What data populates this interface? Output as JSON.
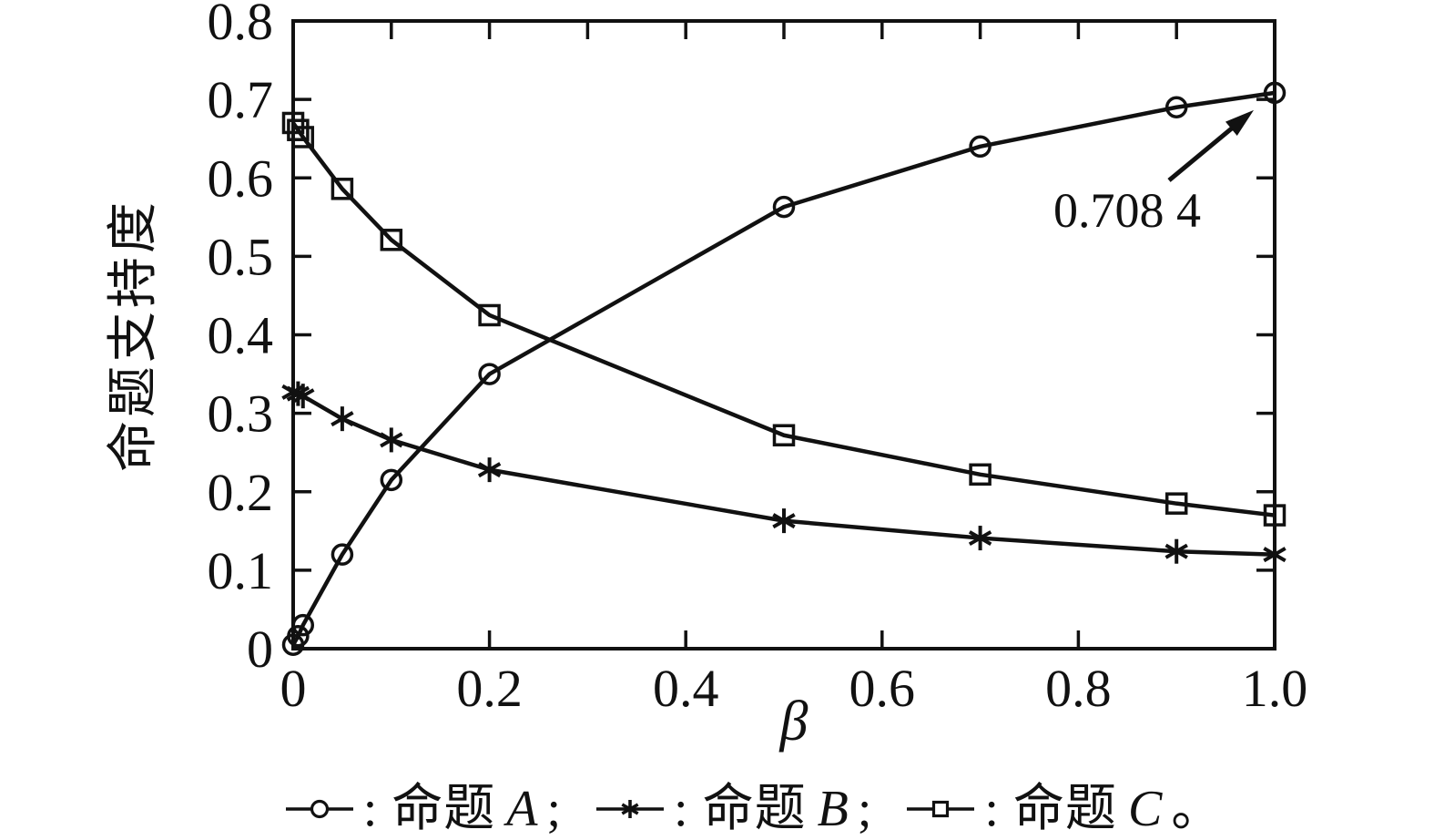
{
  "figure": {
    "background": "#ffffff",
    "ink_color": "#111111"
  },
  "chart_data": {
    "type": "line",
    "title": "",
    "xlabel": "β",
    "ylabel": "命题支持度",
    "xlim": [
      0,
      1.0
    ],
    "ylim": [
      0,
      0.8
    ],
    "grid": false,
    "x_tick_values": [
      0,
      0.2,
      0.4,
      0.6,
      0.8,
      1.0
    ],
    "x_tick_labels": [
      "0",
      "0.2",
      "0.4",
      "0.6",
      "0.8",
      "1.0"
    ],
    "y_tick_values": [
      0,
      0.1,
      0.2,
      0.3,
      0.4,
      0.5,
      0.6,
      0.7,
      0.8
    ],
    "y_tick_labels": [
      "0",
      "0.1",
      "0.2",
      "0.3",
      "0.4",
      "0.5",
      "0.6",
      "0.7",
      "0.8"
    ],
    "minor_tick_interval": 0.1,
    "x": [
      0,
      0.005,
      0.01,
      0.05,
      0.1,
      0.2,
      0.5,
      0.7,
      0.9,
      1.0
    ],
    "series": [
      {
        "name": "命题A",
        "marker": "circle",
        "values": [
          0.005,
          0.016,
          0.03,
          0.12,
          0.215,
          0.35,
          0.563,
          0.64,
          0.69,
          0.7084
        ]
      },
      {
        "name": "命题B",
        "marker": "asterisk",
        "values": [
          0.327,
          0.325,
          0.322,
          0.293,
          0.266,
          0.228,
          0.163,
          0.141,
          0.124,
          0.12
        ]
      },
      {
        "name": "命题C",
        "marker": "square",
        "values": [
          0.67,
          0.661,
          0.652,
          0.586,
          0.521,
          0.425,
          0.272,
          0.222,
          0.185,
          0.17
        ]
      }
    ],
    "annotation": {
      "text": "0.708 4",
      "points_to_series": "命题A",
      "x": 1.0,
      "y": 0.7084
    },
    "legend": {
      "position": "below-chart",
      "items": [
        {
          "marker": "circle",
          "colon": ":",
          "name_cn": "命题",
          "letter": "A",
          "suffix": ";"
        },
        {
          "marker": "asterisk",
          "colon": ":",
          "name_cn": "命题",
          "letter": "B",
          "suffix": ";"
        },
        {
          "marker": "square",
          "colon": ":",
          "name_cn": "命题",
          "letter": "C",
          "suffix": "。"
        }
      ]
    }
  }
}
